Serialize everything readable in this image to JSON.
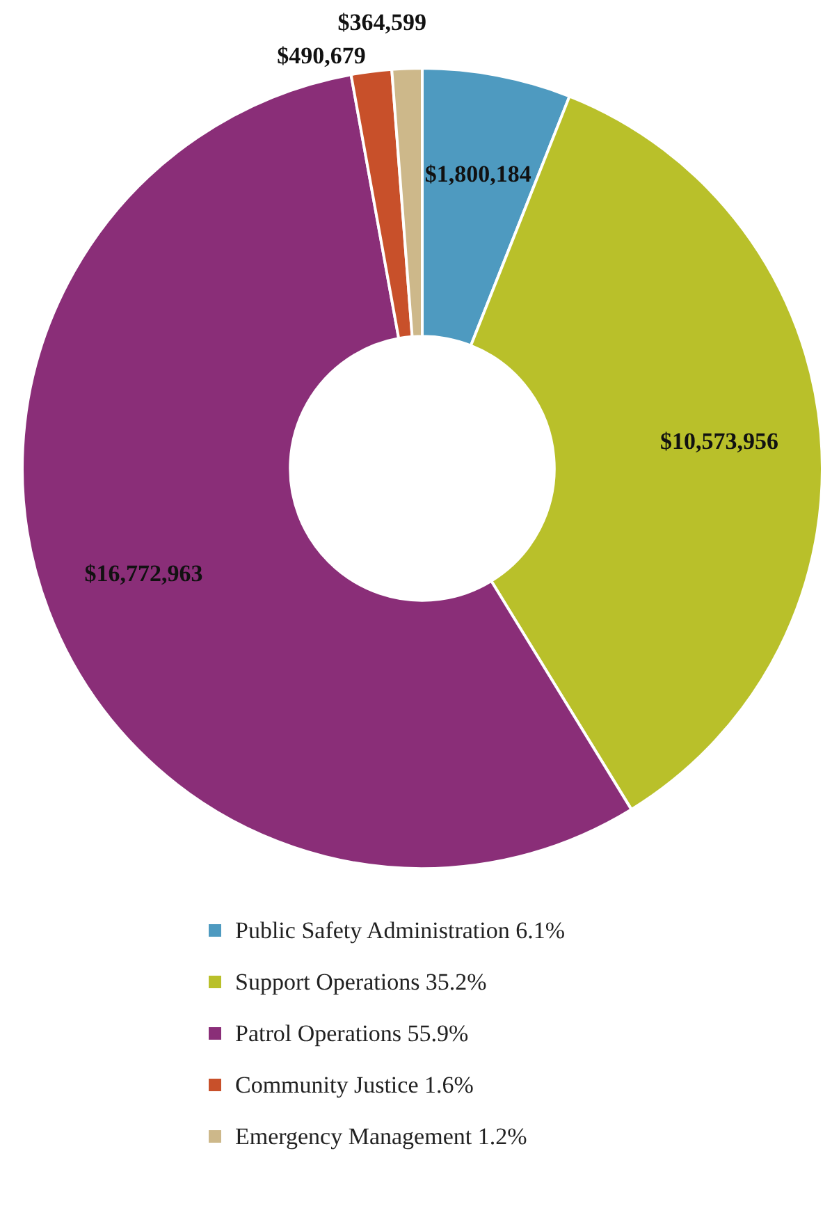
{
  "chart_data": {
    "type": "donut",
    "categories": [
      "Public Safety Administration 6.1%",
      "Support Operations 35.2%",
      "Patrol Operations 55.9%",
      "Community Justice 1.6%",
      "Emergency Management 1.2%"
    ],
    "values": [
      1800184,
      10573956,
      16772963,
      490679,
      364599
    ],
    "colors": [
      "#4e9ac0",
      "#b9c02a",
      "#8a2e78",
      "#c8502a",
      "#cdb88a"
    ],
    "value_labels": [
      "$1,800,184",
      "$10,573,956",
      "$16,772,963",
      "$490,679",
      "$364,599"
    ],
    "legend": "bottom"
  }
}
